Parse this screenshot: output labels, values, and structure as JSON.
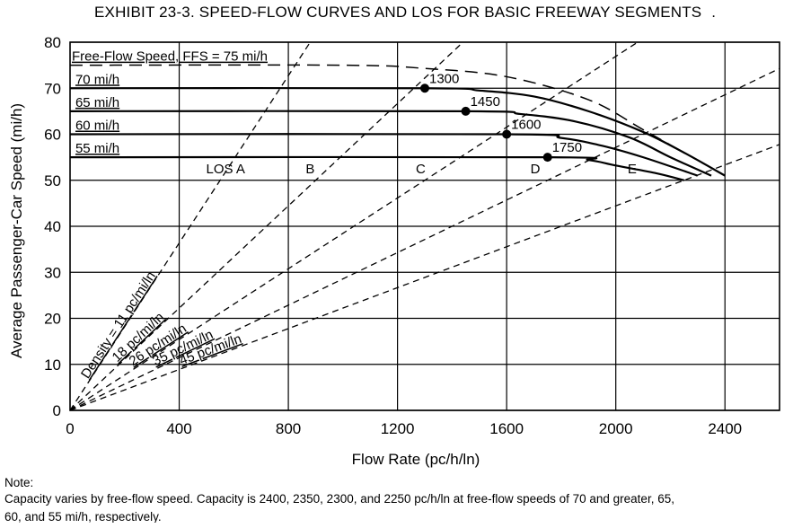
{
  "chart_data": {
    "type": "line",
    "title": "EXHIBIT 23-3.  SPEED-FLOW CURVES AND LOS FOR BASIC FREEWAY SEGMENTS",
    "title_trailing": ".",
    "xlabel": "Flow Rate (pc/h/ln)",
    "ylabel": "Average Passenger-Car Speed (mi/h)",
    "xlim": [
      0,
      2600
    ],
    "ylim": [
      0,
      80
    ],
    "xticks": [
      0,
      400,
      800,
      1200,
      1600,
      2000,
      2400
    ],
    "yticks": [
      0,
      10,
      20,
      30,
      40,
      50,
      60,
      70,
      80
    ],
    "grid": true,
    "series": [
      {
        "name": "Free-Flow Speed, FFS = 75 mi/h",
        "breakpoint": null,
        "capacity": 2400,
        "points": [
          [
            0,
            75
          ],
          [
            1000,
            75
          ],
          [
            1300,
            74.3
          ],
          [
            1600,
            72.5
          ],
          [
            1900,
            67.5
          ],
          [
            2100,
            61
          ],
          [
            2250,
            56
          ],
          [
            2400,
            51
          ]
        ]
      },
      {
        "name": "70 mi/h",
        "breakpoint": 1300,
        "capacity": 2400,
        "points": [
          [
            0,
            70
          ],
          [
            1300,
            70
          ],
          [
            1500,
            69.5
          ],
          [
            1700,
            68.2
          ],
          [
            1900,
            65
          ],
          [
            2100,
            60.5
          ],
          [
            2250,
            56
          ],
          [
            2400,
            51
          ]
        ]
      },
      {
        "name": "65 mi/h",
        "breakpoint": 1450,
        "capacity": 2350,
        "points": [
          [
            0,
            65
          ],
          [
            1450,
            65
          ],
          [
            1650,
            64.4
          ],
          [
            1850,
            62.8
          ],
          [
            2050,
            59.3
          ],
          [
            2200,
            55
          ],
          [
            2350,
            51
          ]
        ]
      },
      {
        "name": "60 mi/h",
        "breakpoint": 1600,
        "capacity": 2300,
        "points": [
          [
            0,
            60
          ],
          [
            1600,
            60
          ],
          [
            1800,
            59.2
          ],
          [
            1950,
            57.5
          ],
          [
            2100,
            55
          ],
          [
            2300,
            51
          ]
        ]
      },
      {
        "name": "55 mi/h",
        "breakpoint": 1750,
        "capacity": 2250,
        "points": [
          [
            0,
            55
          ],
          [
            1750,
            55
          ],
          [
            1900,
            54.4
          ],
          [
            2000,
            53.2
          ],
          [
            2150,
            51.5
          ],
          [
            2250,
            50
          ]
        ]
      }
    ],
    "breakpoints": [
      {
        "label": "1300",
        "x": 1300,
        "y": 70
      },
      {
        "label": "1450",
        "x": 1450,
        "y": 65
      },
      {
        "label": "1600",
        "x": 1600,
        "y": 60
      },
      {
        "label": "1750",
        "x": 1750,
        "y": 55
      }
    ],
    "density_lines": [
      {
        "label": "Density = 11 pc/mi/ln",
        "density": 11
      },
      {
        "label": "18 pc/mi/ln",
        "density": 18
      },
      {
        "label": "26 pc/mi/ln",
        "density": 26
      },
      {
        "label": "35 pc/mi/ln",
        "density": 35
      },
      {
        "label": "45 pc/mi/ln",
        "density": 45
      }
    ],
    "los_labels": [
      {
        "label": "LOS A",
        "x": 570,
        "y": 51.5
      },
      {
        "label": "B",
        "x": 880,
        "y": 51.5
      },
      {
        "label": "C",
        "x": 1285,
        "y": 51.5
      },
      {
        "label": "D",
        "x": 1705,
        "y": 51.5
      },
      {
        "label": "E",
        "x": 2060,
        "y": 51.5
      }
    ]
  },
  "note": {
    "label": "Note:",
    "text": "Capacity varies by free-flow speed.  Capacity is 2400, 2350, 2300, and 2250 pc/h/ln at free-flow speeds of 70 and greater, 65,",
    "text2": "60, and 55 mi/h, respectively."
  }
}
